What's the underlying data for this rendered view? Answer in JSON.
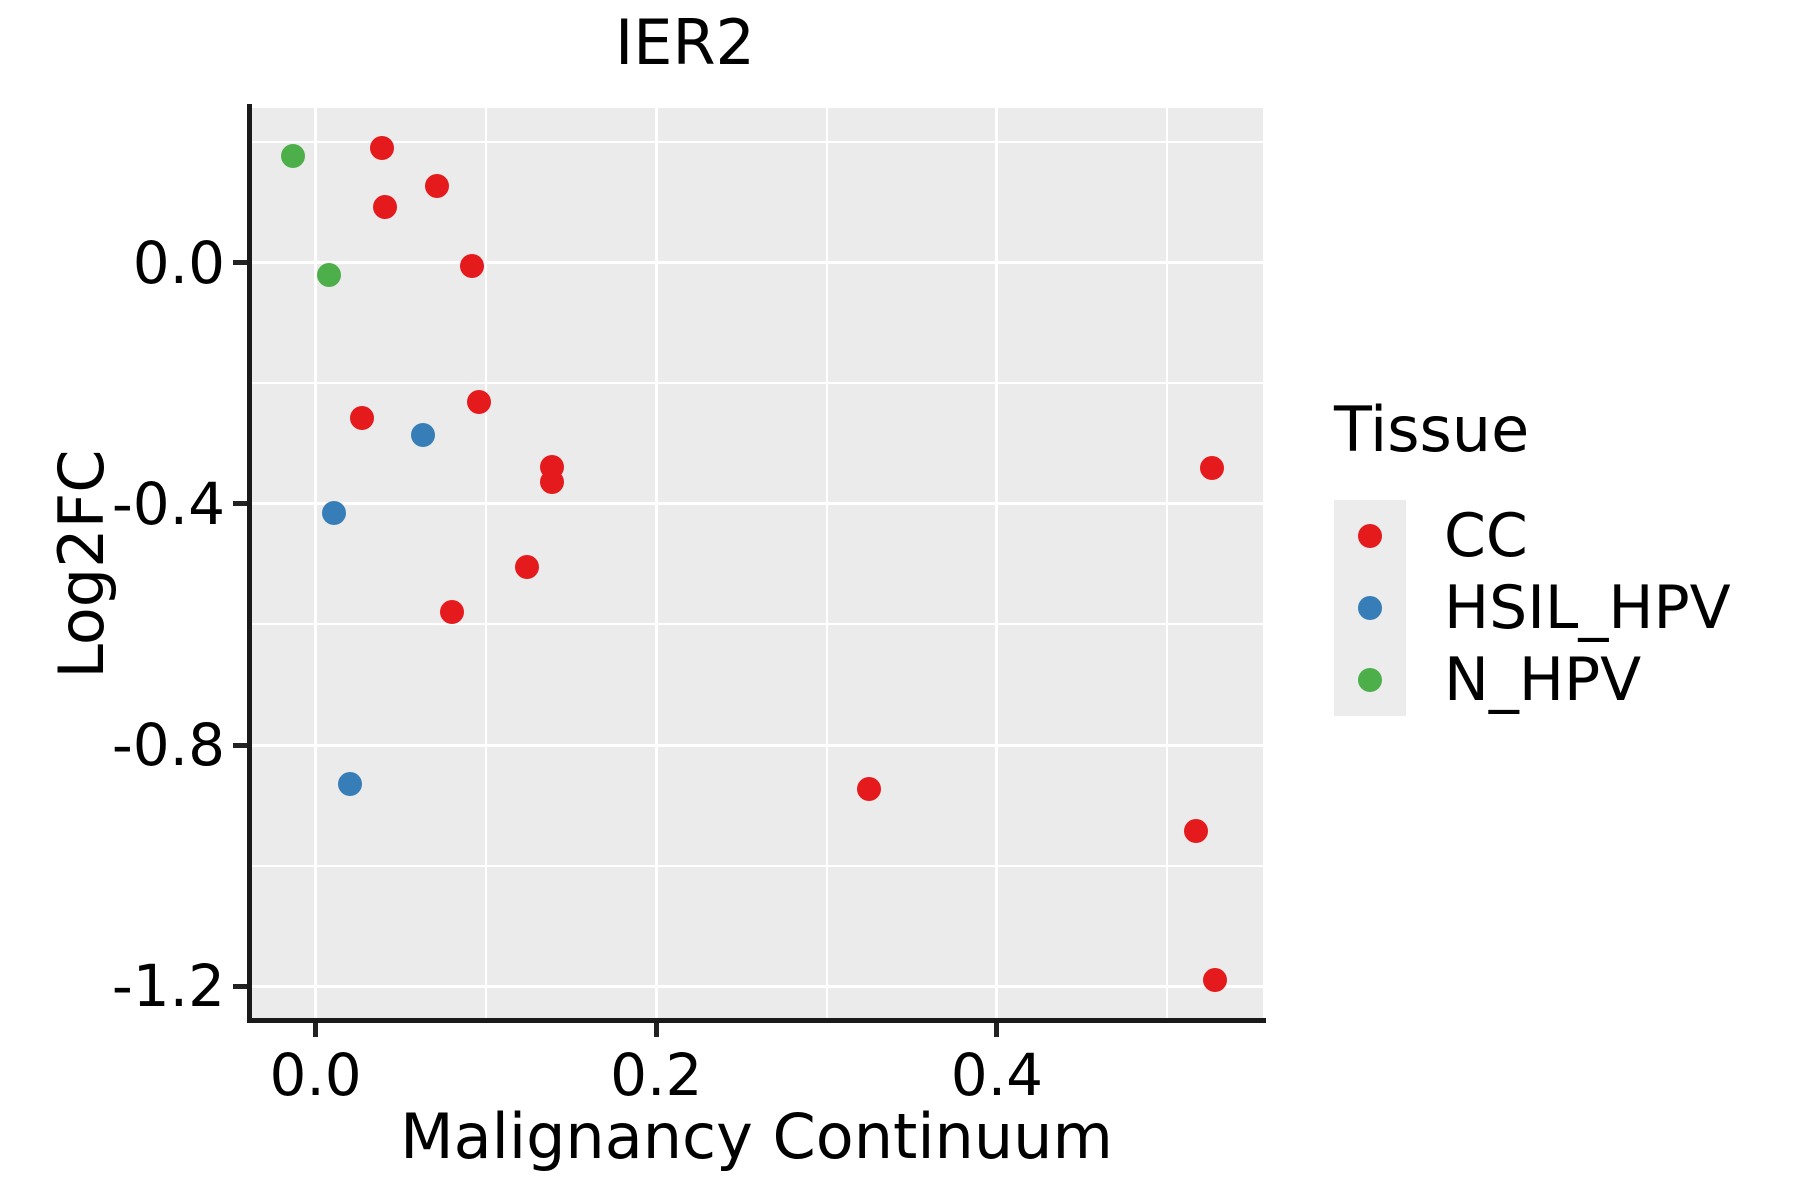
{
  "title": "IER2",
  "x_axis": {
    "label": "Malignancy Continuum",
    "tick_labels": [
      "0.0",
      "0.2",
      "0.4"
    ],
    "tick_values": [
      0.0,
      0.2,
      0.4
    ],
    "minor_values": [
      0.1,
      0.3,
      0.5
    ],
    "domain": [
      -0.0385,
      0.5562
    ]
  },
  "y_axis": {
    "label": "Log2FC",
    "tick_labels": [
      "0.0",
      "-0.4",
      "-0.8",
      "-1.2"
    ],
    "tick_values": [
      0.0,
      -0.4,
      -0.8,
      -1.2
    ],
    "minor_values": [
      0.2,
      -0.2,
      -0.6,
      -1.0
    ],
    "domain": [
      -1.2556,
      0.2561
    ]
  },
  "legend": {
    "title": "Tissue",
    "position": "right"
  },
  "style": {
    "panel_background": "#EBEBEB",
    "gridline_color": "#ffffff",
    "legend_key_background": "#ECECEC",
    "axis_line_color": "#1a1a1a"
  },
  "chart_data": {
    "type": "scatter",
    "title": "IER2",
    "xlabel": "Malignancy Continuum",
    "ylabel": "Log2FC",
    "xlim": [
      -0.0385,
      0.5562
    ],
    "ylim": [
      -1.2556,
      0.2561
    ],
    "x_ticks": [
      0.0,
      0.2,
      0.4
    ],
    "y_ticks": [
      0.0,
      -0.4,
      -0.8,
      -1.2
    ],
    "grid": true,
    "legend_title": "Tissue",
    "legend_position": "right",
    "series": [
      {
        "name": "CC",
        "color": "#E41A1C",
        "points": [
          {
            "x": 0.039,
            "y": 0.19
          },
          {
            "x": 0.071,
            "y": 0.127
          },
          {
            "x": 0.041,
            "y": 0.092
          },
          {
            "x": 0.092,
            "y": -0.006
          },
          {
            "x": 0.027,
            "y": -0.258
          },
          {
            "x": 0.096,
            "y": -0.231
          },
          {
            "x": 0.139,
            "y": -0.339
          },
          {
            "x": 0.139,
            "y": -0.364
          },
          {
            "x": 0.124,
            "y": -0.505
          },
          {
            "x": 0.08,
            "y": -0.579
          },
          {
            "x": 0.325,
            "y": -0.873
          },
          {
            "x": 0.526,
            "y": -0.341
          },
          {
            "x": 0.517,
            "y": -0.942
          },
          {
            "x": 0.528,
            "y": -1.189
          }
        ]
      },
      {
        "name": "HSIL_HPV",
        "color": "#377EB8",
        "points": [
          {
            "x": 0.063,
            "y": -0.286
          },
          {
            "x": 0.011,
            "y": -0.415
          },
          {
            "x": 0.02,
            "y": -0.864
          }
        ]
      },
      {
        "name": "N_HPV",
        "color": "#4DAF4A",
        "points": [
          {
            "x": -0.013,
            "y": 0.177
          },
          {
            "x": 0.008,
            "y": -0.021
          }
        ]
      }
    ]
  }
}
